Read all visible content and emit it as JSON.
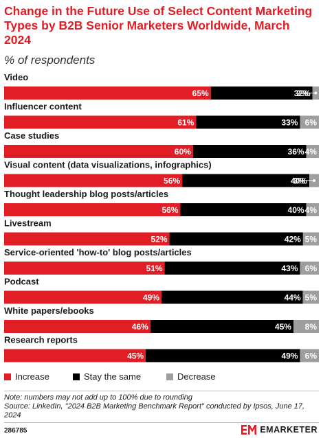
{
  "title": "Change in the Future Use of Select Content Marketing Types by B2B Senior Marketers Worldwide, March 2024",
  "subtitle": "% of respondents",
  "colors": {
    "increase": "#e11d26",
    "same": "#000000",
    "decrease": "#9e9e9e",
    "title": "#e11d26"
  },
  "chart_data": {
    "type": "bar",
    "orientation": "horizontal",
    "stacked": true,
    "categories": [
      "Video",
      "Influencer content",
      "Case studies",
      "Visual content (data visualizations, infographics)",
      "Thought leadership blog posts/articles",
      "Livestream",
      "Service-oriented 'how-to' blog posts/articles",
      "Podcast",
      "White papers/ebooks",
      "Research reports"
    ],
    "series": [
      {
        "name": "Increase",
        "color": "#e11d26",
        "values": [
          65,
          61,
          60,
          56,
          56,
          52,
          51,
          49,
          46,
          45
        ]
      },
      {
        "name": "Stay the same",
        "color": "#000000",
        "values": [
          32,
          33,
          36,
          40,
          40,
          42,
          43,
          44,
          45,
          49
        ]
      },
      {
        "name": "Decrease",
        "color": "#9e9e9e",
        "values": [
          2,
          6,
          4,
          3,
          4,
          5,
          6,
          5,
          8,
          6
        ]
      }
    ],
    "value_suffix": "%",
    "legend_position": "bottom-left",
    "grid": false
  },
  "legend": [
    {
      "label": "Increase",
      "color": "#e11d26"
    },
    {
      "label": "Stay the same",
      "color": "#000000"
    },
    {
      "label": "Decrease",
      "color": "#9e9e9e"
    }
  ],
  "notes": {
    "note": "Note: numbers may not add up to 100% due to rounding",
    "source": "Source: LinkedIn, \"2024 B2B Marketing Benchmark Report\" conducted by Ipsos, June 17, 2024"
  },
  "footer": {
    "chart_id": "286785",
    "brand": "EMARKETER",
    "logo_icon": "emarketer-logo-icon"
  }
}
